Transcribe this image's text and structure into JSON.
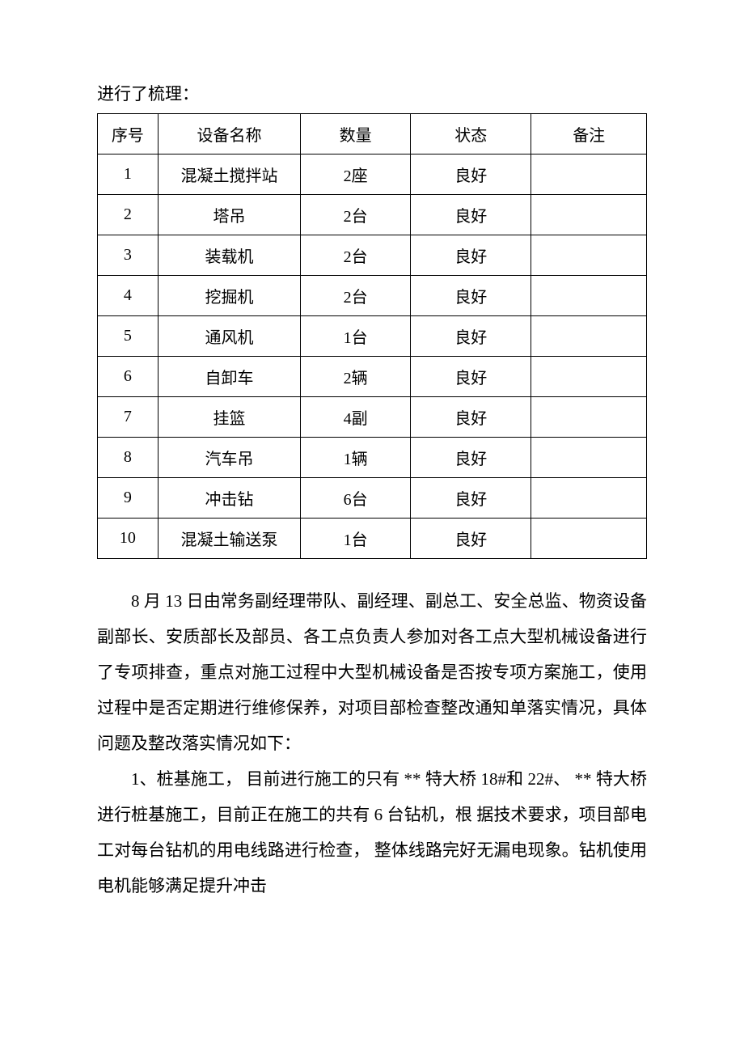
{
  "intro": "进行了梳理：",
  "table": {
    "columns": [
      "序号",
      "设备名称",
      "数量",
      "状态",
      "备注"
    ],
    "rows": [
      [
        "1",
        "混凝土搅拌站",
        "2座",
        "良好",
        ""
      ],
      [
        "2",
        "塔吊",
        "2台",
        "良好",
        ""
      ],
      [
        "3",
        "装载机",
        "2台",
        "良好",
        ""
      ],
      [
        "4",
        "挖掘机",
        "2台",
        "良好",
        ""
      ],
      [
        "5",
        "通风机",
        "1台",
        "良好",
        ""
      ],
      [
        "6",
        "自卸车",
        "2辆",
        "良好",
        ""
      ],
      [
        "7",
        "挂篮",
        "4副",
        "良好",
        ""
      ],
      [
        "8",
        "汽车吊",
        "1辆",
        "良好",
        ""
      ],
      [
        "9",
        "冲击钻",
        "6台",
        "良好",
        ""
      ],
      [
        "10",
        "混凝土输送泵",
        "1台",
        "良好",
        ""
      ]
    ]
  },
  "paragraphs": [
    "8 月 13 日由常务副经理带队、副经理、副总工、安全总监、物资设备副部长、安质部长及部员、各工点负责人参加对各工点大型机械设备进行了专项排查，重点对施工过程中大型机械设备是否按专项方案施工，使用过程中是否定期进行维修保养，对项目部检查整改通知单落实情况，具体问题及整改落实情况如下：",
    "1、桩基施工， 目前进行施工的只有 ** 特大桥 18#和 22#、 ** 特大桥进行桩基施工，目前正在施工的共有 6 台钻机，根 据技术要求，项目部电工对每台钻机的用电线路进行检查， 整体线路完好无漏电现象。钻机使用电机能够满足提升冲击"
  ],
  "styles": {
    "page_bg": "#ffffff",
    "text_color": "#000000",
    "border_color": "#000000",
    "font_family": "SimSun",
    "body_fontsize": 21,
    "table_fontsize": 20,
    "line_height": 2.1
  }
}
